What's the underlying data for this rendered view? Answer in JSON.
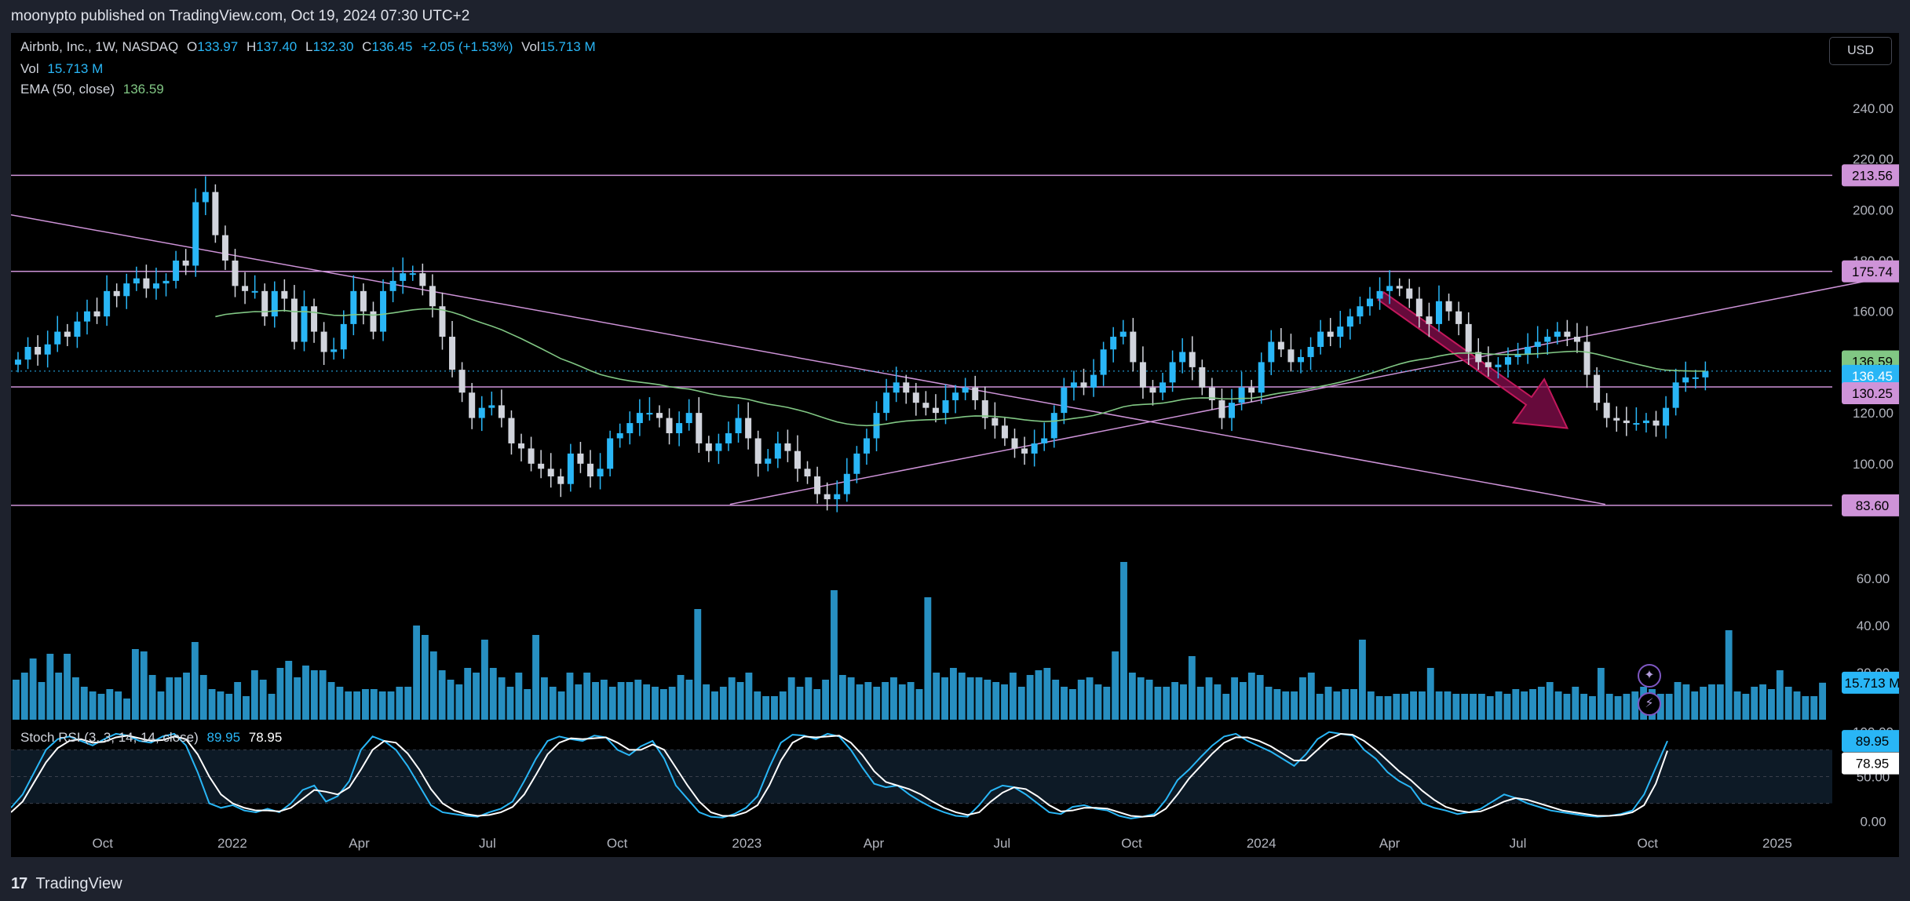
{
  "header": {
    "text": "moonypto published on TradingView.com, Oct 19, 2024 07:30 UTC+2"
  },
  "footer": {
    "brand": "TradingView",
    "logo_glyph": "17"
  },
  "currency_button": "USD",
  "legend": {
    "symbol": "Airbnb, Inc., 1W, NASDAQ",
    "o_label": "O",
    "o_value": "133.97",
    "h_label": "H",
    "h_value": "137.40",
    "l_label": "L",
    "l_value": "132.30",
    "c_label": "C",
    "c_value": "136.45",
    "change": "+2.05 (+1.53%)",
    "vol_label": "Vol",
    "vol_value": "15.713 M",
    "vol_row_label": "Vol",
    "vol_row_value": "15.713 M",
    "ema_label": "EMA (50, close)",
    "ema_value": "136.59",
    "stoch_label": "Stoch RSI (3, 3, 14, 14, close)",
    "stoch_k": "89.95",
    "stoch_d": "78.95"
  },
  "colors": {
    "up": "#29b6f6",
    "down": "#d1d4dc",
    "ema": "#81c784",
    "drawing": "#ce93d8",
    "arrow": "#880e4f",
    "volume": "#2b9fd6",
    "k_line": "#29b6f6",
    "d_line": "#ffffff"
  },
  "chart_data": [
    {
      "type": "candlestick",
      "title": "Airbnb, Inc., 1W, NASDAQ",
      "x_start": "2021-08-02",
      "x_interval": "1W",
      "x_ticks": [
        {
          "date": "2021-10-01",
          "label": "Oct"
        },
        {
          "date": "2022-01-01",
          "label": "2022"
        },
        {
          "date": "2022-04-01",
          "label": "Apr"
        },
        {
          "date": "2022-07-01",
          "label": "Jul"
        },
        {
          "date": "2022-10-01",
          "label": "Oct"
        },
        {
          "date": "2023-01-01",
          "label": "2023"
        },
        {
          "date": "2023-04-01",
          "label": "Apr"
        },
        {
          "date": "2023-07-01",
          "label": "Jul"
        },
        {
          "date": "2023-10-01",
          "label": "Oct"
        },
        {
          "date": "2024-01-01",
          "label": "2024"
        },
        {
          "date": "2024-04-01",
          "label": "Apr"
        },
        {
          "date": "2024-07-01",
          "label": "Jul"
        },
        {
          "date": "2024-10-01",
          "label": "Oct"
        },
        {
          "date": "2025-01-01",
          "label": "2025"
        }
      ],
      "x_end": "2025-03-20",
      "ylim": [
        78,
        248
      ],
      "y_ticks": [
        "100.00",
        "120.00",
        "140.00",
        "160.00",
        "180.00",
        "200.00",
        "220.00",
        "240.00"
      ],
      "close": [
        141,
        146,
        143,
        147,
        152,
        150,
        156,
        160,
        158,
        168,
        166,
        171,
        173,
        169,
        171,
        172,
        180,
        178,
        203,
        207,
        190,
        180,
        170,
        168,
        168,
        158,
        168,
        165,
        148,
        162,
        152,
        144,
        145,
        155,
        168,
        160,
        152,
        168,
        172,
        175,
        175,
        170,
        162,
        150,
        137,
        128,
        118,
        122,
        123,
        118,
        108,
        106,
        100,
        98,
        95,
        92,
        104,
        100,
        95,
        98,
        110,
        112,
        116,
        120,
        120,
        118,
        112,
        116,
        120,
        108,
        105,
        108,
        112,
        118,
        110,
        100,
        102,
        108,
        105,
        98,
        95,
        88,
        86,
        88,
        96,
        104,
        110,
        120,
        128,
        132,
        128,
        124,
        122,
        120,
        125,
        128,
        130,
        125,
        118,
        115,
        110,
        106,
        104,
        108,
        110,
        120,
        130,
        132,
        130,
        135,
        145,
        150,
        152,
        140,
        130,
        128,
        132,
        140,
        144,
        138,
        130,
        125,
        118,
        124,
        130,
        128,
        140,
        148,
        145,
        140,
        142,
        146,
        152,
        150,
        154,
        158,
        162,
        165,
        168,
        170,
        169,
        165,
        158,
        155,
        164,
        160,
        155,
        144,
        140,
        138,
        139,
        142,
        143,
        146,
        148,
        150,
        152,
        150,
        148,
        135,
        124,
        118,
        117,
        116,
        116,
        117,
        115,
        122,
        132,
        134,
        134,
        136.45
      ],
      "ema": {
        "name": "EMA (50, close)",
        "period": 50
      },
      "horizontal_levels": [
        "213.56",
        "175.74",
        "130.25",
        "83.60"
      ],
      "price_badges": [
        {
          "label": "213.56",
          "kind": "level"
        },
        {
          "label": "175.74",
          "kind": "level"
        },
        {
          "label": "136.59",
          "kind": "ema"
        },
        {
          "label": "136.45",
          "kind": "last"
        },
        {
          "label": "130.25",
          "kind": "level"
        },
        {
          "label": "83.60",
          "kind": "level"
        }
      ],
      "trend_lines": [
        {
          "from": {
            "date": "2021-07-28",
            "value": 198
          },
          "to": {
            "date": "2024-09-01",
            "value": 84
          }
        },
        {
          "from": {
            "date": "2022-12-20",
            "value": 84
          },
          "to": {
            "date": "2025-03-15",
            "value": 173
          }
        }
      ],
      "arrow": {
        "from": {
          "date": "2024-03-26",
          "value": 166
        },
        "to": {
          "date": "2024-08-05",
          "value": 114
        }
      }
    },
    {
      "type": "bar",
      "title": "Vol",
      "ylim": [
        0,
        75
      ],
      "y_ticks": [
        "20.00",
        "40.00",
        "60.00"
      ],
      "values": [
        17,
        20,
        26,
        16,
        28,
        20,
        28,
        18,
        14,
        12,
        11,
        13,
        12,
        9,
        30,
        29,
        19,
        12,
        18,
        18,
        20,
        33,
        19,
        13,
        12,
        11,
        16,
        10,
        21,
        17,
        11,
        22,
        25,
        18,
        23,
        21,
        21,
        16,
        14,
        12,
        12,
        13,
        13,
        12,
        12,
        14,
        14,
        40,
        36,
        29,
        21,
        17,
        15,
        22,
        20,
        34,
        22,
        18,
        14,
        20,
        13,
        36,
        18,
        14,
        12,
        20,
        15,
        20,
        16,
        17,
        14,
        16,
        16,
        17,
        15,
        14,
        13,
        14,
        19,
        17,
        47,
        15,
        12,
        14,
        18,
        16,
        20,
        12,
        10,
        10,
        12,
        18,
        14,
        18,
        13,
        17,
        55,
        19,
        18,
        15,
        16,
        14,
        16,
        18,
        15,
        16,
        13,
        52,
        20,
        18,
        22,
        20,
        18,
        18,
        17,
        16,
        15,
        20,
        14,
        19,
        21,
        22,
        17,
        14,
        13,
        17,
        18,
        15,
        14,
        29,
        67,
        20,
        18,
        17,
        14,
        14,
        16,
        15,
        27,
        14,
        18,
        15,
        11,
        18,
        16,
        20,
        19,
        14,
        13,
        12,
        12,
        18,
        20,
        11,
        14,
        12,
        13,
        13,
        34,
        12,
        10,
        10,
        11,
        11,
        12,
        12,
        22,
        12,
        12,
        11,
        11,
        11,
        11,
        10,
        12,
        11,
        13,
        12,
        13,
        14,
        16,
        12,
        11,
        14,
        11,
        10,
        22,
        11,
        10,
        11,
        12,
        14,
        13,
        11,
        11,
        16,
        15,
        12,
        14,
        15,
        15,
        38,
        12,
        11,
        14,
        15,
        13,
        21,
        14,
        12,
        10,
        10,
        15.713
      ],
      "last_value_badge": "15.713 M"
    },
    {
      "type": "line",
      "title": "Stoch RSI (3, 3, 14, 14, close)",
      "ylim": [
        -5,
        105
      ],
      "y_ticks": [
        "0.00",
        "50.00",
        "100.00"
      ],
      "bands": [
        20,
        80
      ],
      "series": [
        {
          "name": "K",
          "values": [
            15,
            30,
            55,
            80,
            92,
            95,
            90,
            85,
            92,
            98,
            96,
            90,
            88,
            95,
            98,
            85,
            55,
            20,
            15,
            18,
            12,
            10,
            14,
            10,
            20,
            35,
            40,
            22,
            28,
            45,
            80,
            95,
            90,
            80,
            62,
            40,
            18,
            10,
            8,
            6,
            5,
            10,
            14,
            22,
            45,
            70,
            90,
            95,
            92,
            90,
            96,
            94,
            80,
            74,
            84,
            90,
            70,
            40,
            25,
            10,
            5,
            4,
            8,
            15,
            28,
            60,
            88,
            97,
            96,
            92,
            98,
            95,
            80,
            60,
            42,
            38,
            40,
            30,
            22,
            15,
            10,
            6,
            5,
            18,
            34,
            40,
            38,
            30,
            20,
            10,
            8,
            16,
            18,
            14,
            12,
            6,
            3,
            5,
            8,
            24,
            46,
            58,
            72,
            85,
            95,
            98,
            90,
            84,
            78,
            70,
            62,
            75,
            92,
            100,
            98,
            96,
            80,
            70,
            55,
            45,
            38,
            20,
            15,
            12,
            8,
            10,
            14,
            22,
            30,
            26,
            20,
            16,
            12,
            10,
            8,
            6,
            5,
            6,
            8,
            12,
            30,
            60,
            89.95
          ]
        },
        {
          "name": "D",
          "values": [
            10,
            22,
            44,
            66,
            82,
            90,
            92,
            88,
            89,
            94,
            96,
            93,
            90,
            91,
            95,
            92,
            75,
            50,
            30,
            20,
            15,
            12,
            12,
            11,
            15,
            25,
            35,
            33,
            30,
            38,
            58,
            80,
            90,
            88,
            76,
            58,
            36,
            20,
            12,
            8,
            6,
            7,
            10,
            16,
            30,
            52,
            75,
            88,
            93,
            92,
            93,
            94,
            88,
            80,
            80,
            86,
            80,
            60,
            40,
            22,
            10,
            6,
            6,
            10,
            18,
            40,
            68,
            88,
            95,
            94,
            95,
            96,
            88,
            74,
            56,
            44,
            40,
            36,
            30,
            22,
            15,
            10,
            7,
            10,
            22,
            32,
            38,
            36,
            28,
            18,
            11,
            12,
            15,
            15,
            14,
            10,
            6,
            5,
            6,
            14,
            30,
            48,
            62,
            76,
            88,
            94,
            94,
            90,
            84,
            76,
            68,
            68,
            80,
            92,
            98,
            97,
            90,
            80,
            68,
            56,
            46,
            34,
            24,
            16,
            12,
            10,
            11,
            16,
            22,
            26,
            24,
            20,
            16,
            12,
            10,
            8,
            6,
            6,
            7,
            10,
            18,
            42,
            78.95
          ]
        }
      ]
    }
  ]
}
